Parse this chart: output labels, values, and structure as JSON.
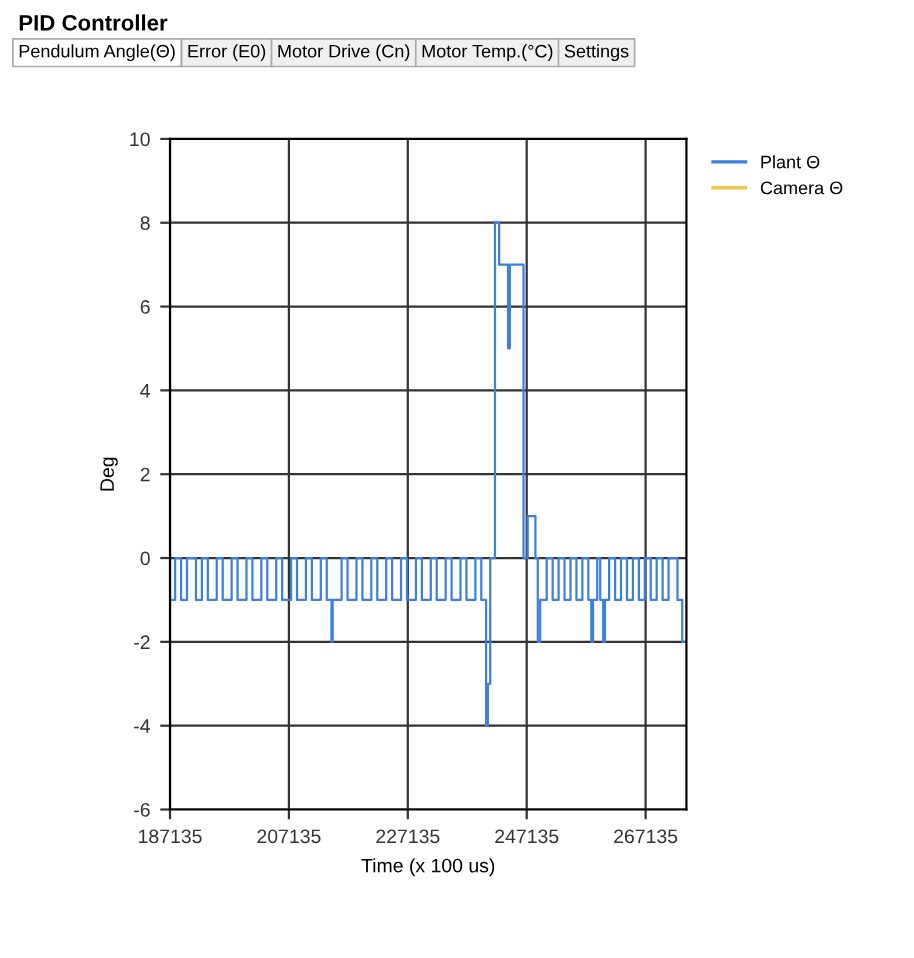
{
  "chart_data": {
    "type": "step",
    "title": "PID Controller",
    "annotations": [
      "Pendulum Angle(Θ)",
      "Error (E0)",
      "Motor Drive (Cn)",
      "Motor Temp.(°C)",
      "Settings"
    ],
    "xlabel": "Time (x 100 us)",
    "ylabel": "Deg",
    "series": [
      {
        "name": "Plant Θ",
        "color": "#3c7fdc",
        "x": [
          187135,
          188000,
          189000,
          190000,
          191500,
          192500,
          193500,
          195000,
          196000,
          197500,
          198500,
          200000,
          201000,
          202500,
          203500,
          205000,
          206000,
          207500,
          208500,
          210000,
          211000,
          212500,
          213500,
          214300,
          214500,
          216000,
          217000,
          218500,
          219500,
          221000,
          222000,
          223500,
          224500,
          226000,
          227000,
          228500,
          229500,
          231000,
          232000,
          233500,
          234500,
          236000,
          237000,
          238500,
          239500,
          240300,
          240600,
          241000,
          241800,
          242500,
          244000,
          244300,
          245500,
          246600,
          247300,
          248600,
          249000,
          249400,
          250500,
          251500,
          252500,
          253500,
          254500,
          255500,
          256500,
          257500,
          258000,
          258300,
          259000,
          259500,
          260000,
          260300,
          261000,
          262000,
          263000,
          264000,
          265000,
          266000,
          267000,
          268000,
          269000,
          270000,
          271000,
          272500,
          273300,
          273600
        ],
        "values": [
          -1,
          0,
          -1,
          0,
          -1,
          0,
          -1,
          0,
          -1,
          0,
          -1,
          0,
          -1,
          0,
          -1,
          0,
          -1,
          0,
          -1,
          0,
          -1,
          0,
          -1,
          -2,
          -1,
          0,
          -1,
          0,
          -1,
          0,
          -1,
          0,
          -1,
          0,
          -1,
          0,
          -1,
          0,
          -1,
          0,
          -1,
          0,
          -1,
          0,
          -1,
          -4,
          -3,
          0,
          8,
          7,
          5,
          7,
          7,
          0,
          1,
          0,
          -2,
          -1,
          0,
          -1,
          0,
          -1,
          0,
          -1,
          0,
          -1,
          -2,
          -1,
          0,
          -1,
          -2,
          -1,
          0,
          -1,
          0,
          -1,
          0,
          -1,
          0,
          -1,
          0,
          -1,
          0,
          -1,
          -2,
          -2
        ]
      },
      {
        "name": "Camera Θ",
        "color": "#f0c850"
      }
    ],
    "xlim": [
      187135,
      274000
    ],
    "xticks": [
      187135,
      207135,
      227135,
      247135,
      267135
    ],
    "ylim": [
      -6,
      10
    ],
    "yticks": [
      -6,
      -4,
      -2,
      0,
      2,
      4,
      6,
      8,
      10
    ],
    "grid": true,
    "legend": "top right",
    "marker": "none",
    "line_style": "solid"
  }
}
